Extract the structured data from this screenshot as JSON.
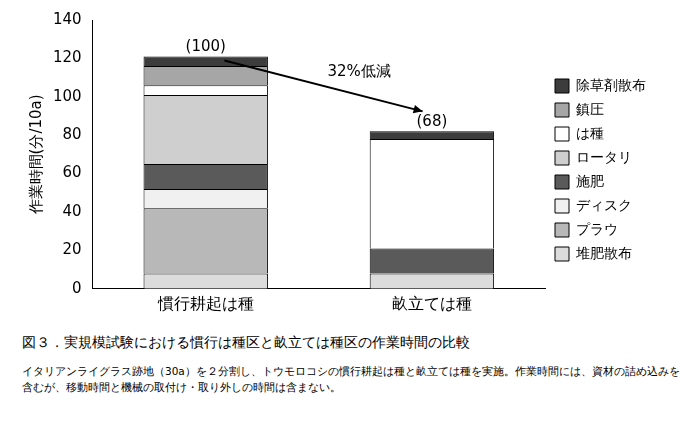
{
  "chart_data": {
    "type": "bar",
    "title": "図３．実規模試験における慣行は種区と畝立ては種区の作業時間の比較",
    "caption": "イタリアンライグラス跡地（30a）を２分割し、トウモロコシの慣行耕起は種と畝立ては種を実施。作業時間には、資材の詰め込みを含むが、移動時間と機械の取付け・取り外しの時間は含まない。",
    "y_label": "作業時間(分/10a)",
    "categories": [
      "慣行耕起は種",
      "畝立ては種"
    ],
    "series": [
      {
        "name": "堆肥散布",
        "color": "#dcdcdc",
        "values": [
          8,
          8
        ]
      },
      {
        "name": "プラウ",
        "color": "#b8b8b8",
        "values": [
          34,
          0
        ]
      },
      {
        "name": "ディスク",
        "color": "#f0f0f0",
        "values": [
          10,
          0
        ]
      },
      {
        "name": "施肥",
        "color": "#5a5a5a",
        "values": [
          13,
          13
        ]
      },
      {
        "name": "ロータリ",
        "color": "#cfcfcf",
        "values": [
          36,
          0
        ]
      },
      {
        "name": "は種",
        "color": "#ffffff",
        "values": [
          5,
          57
        ]
      },
      {
        "name": "鎮圧",
        "color": "#a6a6a6",
        "values": [
          10,
          0
        ]
      },
      {
        "name": "除草剤散布",
        "color": "#3c3c3c",
        "values": [
          5,
          4
        ]
      }
    ],
    "annotations": [
      {
        "text": "(100)",
        "category": "慣行耕起は種"
      },
      {
        "text": "(68)",
        "category": "畝立ては種"
      },
      {
        "text": "32%低減"
      }
    ],
    "stacked": true,
    "ylim": [
      0,
      140
    ],
    "yticks": [
      0,
      20,
      40,
      60,
      80,
      100,
      120,
      140
    ],
    "grid": false,
    "legend": "right"
  }
}
